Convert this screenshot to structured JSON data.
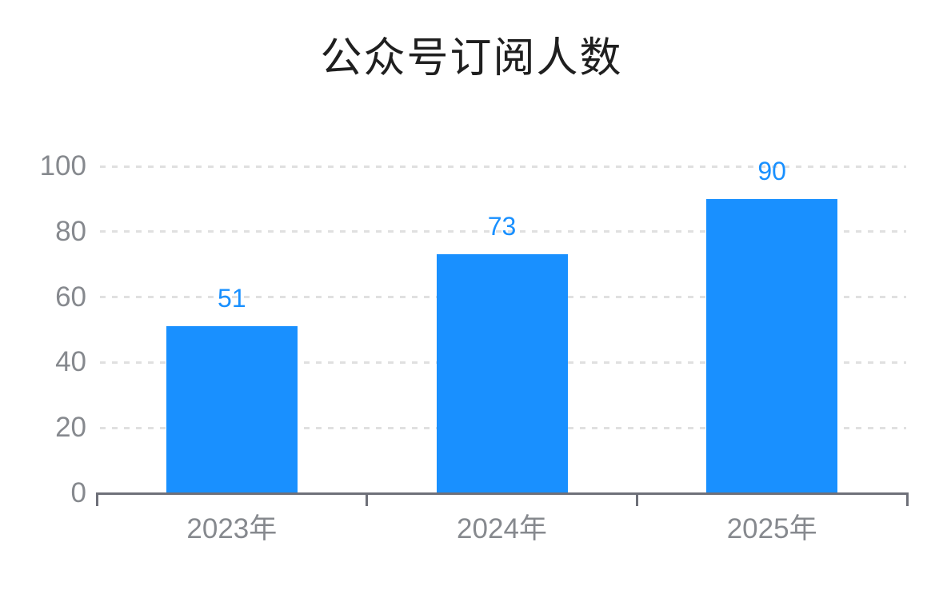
{
  "chart_data": {
    "type": "bar",
    "title": "公众号订阅人数",
    "categories": [
      "2023年",
      "2024年",
      "2025年"
    ],
    "values": [
      51,
      73,
      90
    ],
    "data_labels_shown": true,
    "xlabel": "",
    "ylabel": "",
    "yticks": [
      0,
      20,
      40,
      60,
      80,
      100
    ],
    "ylim": [
      0,
      100
    ],
    "grid": "horizontal-dashed",
    "legend": "none",
    "colors": {
      "bar": "#1990ff",
      "value_label": "#1990ff",
      "axis_line": "#6e7079",
      "tick_label": "#86898e",
      "gridline": "#e0e0e0",
      "title": "#1f1f1f",
      "background": "#ffffff"
    }
  }
}
